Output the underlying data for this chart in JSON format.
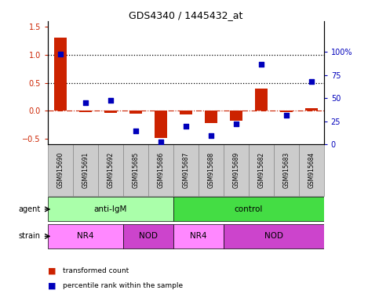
{
  "title": "GDS4340 / 1445432_at",
  "samples": [
    "GSM915690",
    "GSM915691",
    "GSM915692",
    "GSM915685",
    "GSM915686",
    "GSM915687",
    "GSM915688",
    "GSM915689",
    "GSM915682",
    "GSM915683",
    "GSM915684"
  ],
  "red_values": [
    1.3,
    -0.02,
    -0.03,
    -0.05,
    -0.48,
    -0.07,
    -0.22,
    -0.17,
    0.4,
    -0.02,
    0.05
  ],
  "blue_values": [
    98,
    45,
    48,
    15,
    3,
    20,
    10,
    22,
    87,
    32,
    68
  ],
  "ylim_left": [
    -0.6,
    1.6
  ],
  "ylim_right": [
    0,
    133.33
  ],
  "yticks_left": [
    -0.5,
    0.0,
    0.5,
    1.0,
    1.5
  ],
  "yticks_right": [
    0,
    25,
    50,
    75,
    100
  ],
  "agent_groups": [
    {
      "label": "anti-IgM",
      "start": 0,
      "end": 5,
      "color": "#aaffaa"
    },
    {
      "label": "control",
      "start": 5,
      "end": 11,
      "color": "#44dd44"
    }
  ],
  "strain_groups": [
    {
      "label": "NR4",
      "start": 0,
      "end": 3,
      "color": "#ff88ff"
    },
    {
      "label": "NOD",
      "start": 3,
      "end": 5,
      "color": "#cc44cc"
    },
    {
      "label": "NR4",
      "start": 5,
      "end": 7,
      "color": "#ff88ff"
    },
    {
      "label": "NOD",
      "start": 7,
      "end": 11,
      "color": "#cc44cc"
    }
  ],
  "bar_color": "#cc2200",
  "dot_color": "#0000bb",
  "dashed_line_color": "#cc2200",
  "label_red": "transformed count",
  "label_blue": "percentile rank within the sample",
  "agent_label": "agent",
  "strain_label": "strain",
  "tick_bg_color": "#cccccc",
  "tick_border_color": "#888888"
}
